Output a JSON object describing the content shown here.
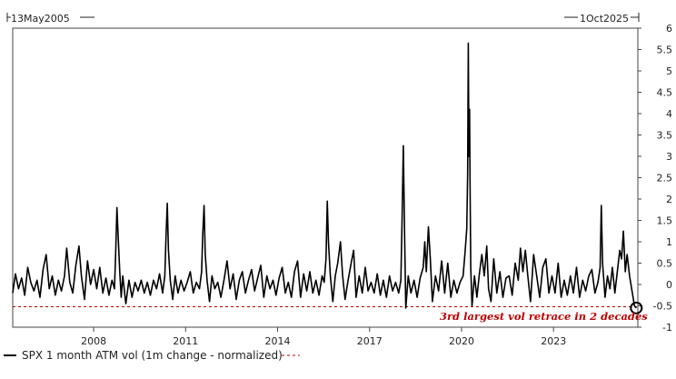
{
  "chart_data": {
    "type": "line",
    "title": "",
    "xlabel": "",
    "ylabel": "",
    "x_range_labels": {
      "start": "13May2005",
      "end": "1Oct2025"
    },
    "x_domain": [
      2005.36,
      2025.75
    ],
    "x_ticks": [
      {
        "value": 2008.0,
        "label": "2008"
      },
      {
        "value": 2011.0,
        "label": "2011"
      },
      {
        "value": 2014.0,
        "label": "2014"
      },
      {
        "value": 2017.0,
        "label": "2017"
      },
      {
        "value": 2020.0,
        "label": "2020"
      },
      {
        "value": 2023.0,
        "label": "2023"
      }
    ],
    "y_axis_side": "right",
    "ylim": [
      -1,
      6
    ],
    "y_ticks": [
      {
        "value": 6,
        "label": "6"
      },
      {
        "value": 5.5,
        "label": "5.5"
      },
      {
        "value": 5,
        "label": "5"
      },
      {
        "value": 4.5,
        "label": "4.5"
      },
      {
        "value": 4,
        "label": "4"
      },
      {
        "value": 3.5,
        "label": "3.5"
      },
      {
        "value": 3,
        "label": "3"
      },
      {
        "value": 2.5,
        "label": "2.5"
      },
      {
        "value": 2,
        "label": "2"
      },
      {
        "value": 1.5,
        "label": "1.5"
      },
      {
        "value": 1,
        "label": "1"
      },
      {
        "value": 0.5,
        "label": "0.5"
      },
      {
        "value": 0,
        "label": "0"
      },
      {
        "value": -0.5,
        "label": "-0.5"
      },
      {
        "value": -1,
        "label": "-1"
      }
    ],
    "grid": false,
    "series": [
      {
        "name": "SPX 1 month ATM vol (1m change - normalized)",
        "color": "#000000",
        "points": [
          [
            2005.36,
            -0.2
          ],
          [
            2005.45,
            0.25
          ],
          [
            2005.55,
            -0.1
          ],
          [
            2005.65,
            0.15
          ],
          [
            2005.75,
            -0.25
          ],
          [
            2005.85,
            0.4
          ],
          [
            2005.95,
            0.05
          ],
          [
            2006.05,
            -0.15
          ],
          [
            2006.15,
            0.1
          ],
          [
            2006.25,
            -0.3
          ],
          [
            2006.35,
            0.35
          ],
          [
            2006.45,
            0.7
          ],
          [
            2006.55,
            -0.1
          ],
          [
            2006.65,
            0.2
          ],
          [
            2006.75,
            -0.25
          ],
          [
            2006.85,
            0.1
          ],
          [
            2006.95,
            -0.15
          ],
          [
            2007.05,
            0.2
          ],
          [
            2007.12,
            0.85
          ],
          [
            2007.22,
            0.05
          ],
          [
            2007.32,
            -0.2
          ],
          [
            2007.42,
            0.45
          ],
          [
            2007.52,
            0.9
          ],
          [
            2007.6,
            0.2
          ],
          [
            2007.7,
            -0.35
          ],
          [
            2007.8,
            0.55
          ],
          [
            2007.9,
            0.0
          ],
          [
            2008.0,
            0.35
          ],
          [
            2008.1,
            -0.1
          ],
          [
            2008.2,
            0.4
          ],
          [
            2008.3,
            -0.2
          ],
          [
            2008.4,
            0.15
          ],
          [
            2008.5,
            -0.25
          ],
          [
            2008.6,
            0.1
          ],
          [
            2008.68,
            -0.1
          ],
          [
            2008.72,
            0.8
          ],
          [
            2008.76,
            1.8
          ],
          [
            2008.8,
            1.1
          ],
          [
            2008.85,
            0.3
          ],
          [
            2008.9,
            -0.3
          ],
          [
            2008.95,
            0.2
          ],
          [
            2009.05,
            -0.45
          ],
          [
            2009.15,
            0.1
          ],
          [
            2009.25,
            -0.3
          ],
          [
            2009.35,
            0.05
          ],
          [
            2009.45,
            -0.15
          ],
          [
            2009.55,
            0.1
          ],
          [
            2009.65,
            -0.2
          ],
          [
            2009.75,
            0.05
          ],
          [
            2009.85,
            -0.25
          ],
          [
            2009.95,
            0.1
          ],
          [
            2010.05,
            -0.1
          ],
          [
            2010.15,
            0.25
          ],
          [
            2010.25,
            -0.2
          ],
          [
            2010.32,
            0.2
          ],
          [
            2010.36,
            1.1
          ],
          [
            2010.4,
            1.9
          ],
          [
            2010.44,
            0.8
          ],
          [
            2010.5,
            0.1
          ],
          [
            2010.58,
            -0.35
          ],
          [
            2010.66,
            0.2
          ],
          [
            2010.75,
            -0.2
          ],
          [
            2010.85,
            0.1
          ],
          [
            2010.95,
            -0.15
          ],
          [
            2011.05,
            0.05
          ],
          [
            2011.15,
            0.3
          ],
          [
            2011.25,
            -0.2
          ],
          [
            2011.35,
            0.05
          ],
          [
            2011.45,
            -0.1
          ],
          [
            2011.52,
            0.3
          ],
          [
            2011.56,
            1.2
          ],
          [
            2011.6,
            1.85
          ],
          [
            2011.64,
            0.7
          ],
          [
            2011.7,
            0.1
          ],
          [
            2011.78,
            -0.4
          ],
          [
            2011.86,
            0.2
          ],
          [
            2011.95,
            -0.1
          ],
          [
            2012.05,
            0.05
          ],
          [
            2012.15,
            -0.3
          ],
          [
            2012.25,
            0.1
          ],
          [
            2012.35,
            0.55
          ],
          [
            2012.45,
            -0.1
          ],
          [
            2012.55,
            0.25
          ],
          [
            2012.65,
            -0.35
          ],
          [
            2012.75,
            0.1
          ],
          [
            2012.85,
            0.3
          ],
          [
            2012.95,
            -0.2
          ],
          [
            2013.05,
            0.1
          ],
          [
            2013.15,
            0.35
          ],
          [
            2013.25,
            -0.15
          ],
          [
            2013.35,
            0.15
          ],
          [
            2013.45,
            0.45
          ],
          [
            2013.55,
            -0.3
          ],
          [
            2013.65,
            0.2
          ],
          [
            2013.75,
            -0.1
          ],
          [
            2013.85,
            0.1
          ],
          [
            2013.95,
            -0.25
          ],
          [
            2014.05,
            0.15
          ],
          [
            2014.15,
            0.4
          ],
          [
            2014.25,
            -0.2
          ],
          [
            2014.35,
            0.05
          ],
          [
            2014.45,
            -0.3
          ],
          [
            2014.55,
            0.3
          ],
          [
            2014.65,
            0.55
          ],
          [
            2014.75,
            -0.3
          ],
          [
            2014.85,
            0.25
          ],
          [
            2014.95,
            -0.15
          ],
          [
            2015.05,
            0.3
          ],
          [
            2015.15,
            -0.2
          ],
          [
            2015.25,
            0.1
          ],
          [
            2015.35,
            -0.25
          ],
          [
            2015.45,
            0.2
          ],
          [
            2015.52,
            0.05
          ],
          [
            2015.58,
            0.6
          ],
          [
            2015.62,
            1.95
          ],
          [
            2015.66,
            1.0
          ],
          [
            2015.72,
            0.2
          ],
          [
            2015.8,
            -0.4
          ],
          [
            2015.88,
            0.2
          ],
          [
            2015.96,
            0.5
          ],
          [
            2016.05,
            1.0
          ],
          [
            2016.12,
            0.2
          ],
          [
            2016.2,
            -0.35
          ],
          [
            2016.3,
            0.1
          ],
          [
            2016.4,
            0.5
          ],
          [
            2016.48,
            0.8
          ],
          [
            2016.56,
            -0.3
          ],
          [
            2016.66,
            0.2
          ],
          [
            2016.76,
            -0.2
          ],
          [
            2016.86,
            0.4
          ],
          [
            2016.95,
            -0.15
          ],
          [
            2017.05,
            0.05
          ],
          [
            2017.15,
            -0.2
          ],
          [
            2017.25,
            0.25
          ],
          [
            2017.35,
            -0.25
          ],
          [
            2017.45,
            0.1
          ],
          [
            2017.55,
            -0.3
          ],
          [
            2017.65,
            0.2
          ],
          [
            2017.75,
            -0.15
          ],
          [
            2017.85,
            0.05
          ],
          [
            2017.95,
            -0.2
          ],
          [
            2018.02,
            0.1
          ],
          [
            2018.06,
            1.5
          ],
          [
            2018.1,
            3.25
          ],
          [
            2018.14,
            1.3
          ],
          [
            2018.18,
            -0.55
          ],
          [
            2018.26,
            0.2
          ],
          [
            2018.35,
            -0.2
          ],
          [
            2018.45,
            0.1
          ],
          [
            2018.55,
            -0.3
          ],
          [
            2018.65,
            0.15
          ],
          [
            2018.75,
            0.4
          ],
          [
            2018.8,
            1.0
          ],
          [
            2018.85,
            0.3
          ],
          [
            2018.92,
            1.35
          ],
          [
            2018.98,
            0.6
          ],
          [
            2019.05,
            -0.4
          ],
          [
            2019.15,
            0.2
          ],
          [
            2019.25,
            -0.15
          ],
          [
            2019.35,
            0.55
          ],
          [
            2019.45,
            -0.2
          ],
          [
            2019.55,
            0.5
          ],
          [
            2019.65,
            -0.3
          ],
          [
            2019.75,
            0.1
          ],
          [
            2019.85,
            -0.2
          ],
          [
            2019.95,
            0.05
          ],
          [
            2020.05,
            0.2
          ],
          [
            2020.12,
            0.8
          ],
          [
            2020.17,
            1.3
          ],
          [
            2020.2,
            2.6
          ],
          [
            2020.22,
            5.65
          ],
          [
            2020.24,
            3.0
          ],
          [
            2020.26,
            4.1
          ],
          [
            2020.28,
            2.2
          ],
          [
            2020.3,
            0.4
          ],
          [
            2020.34,
            -0.5
          ],
          [
            2020.42,
            0.2
          ],
          [
            2020.5,
            -0.3
          ],
          [
            2020.58,
            0.25
          ],
          [
            2020.66,
            0.7
          ],
          [
            2020.74,
            0.2
          ],
          [
            2020.82,
            0.9
          ],
          [
            2020.88,
            -0.1
          ],
          [
            2020.96,
            -0.4
          ],
          [
            2021.05,
            0.6
          ],
          [
            2021.15,
            -0.2
          ],
          [
            2021.25,
            0.3
          ],
          [
            2021.35,
            -0.3
          ],
          [
            2021.45,
            0.15
          ],
          [
            2021.55,
            0.2
          ],
          [
            2021.65,
            -0.25
          ],
          [
            2021.75,
            0.5
          ],
          [
            2021.85,
            0.1
          ],
          [
            2021.92,
            0.85
          ],
          [
            2022.0,
            0.3
          ],
          [
            2022.08,
            0.8
          ],
          [
            2022.16,
            0.2
          ],
          [
            2022.25,
            -0.4
          ],
          [
            2022.35,
            0.7
          ],
          [
            2022.45,
            0.2
          ],
          [
            2022.55,
            -0.3
          ],
          [
            2022.65,
            0.4
          ],
          [
            2022.75,
            0.6
          ],
          [
            2022.85,
            -0.2
          ],
          [
            2022.95,
            0.2
          ],
          [
            2023.05,
            -0.2
          ],
          [
            2023.15,
            0.5
          ],
          [
            2023.25,
            -0.3
          ],
          [
            2023.35,
            0.1
          ],
          [
            2023.45,
            -0.25
          ],
          [
            2023.55,
            0.2
          ],
          [
            2023.65,
            -0.2
          ],
          [
            2023.75,
            0.4
          ],
          [
            2023.85,
            -0.3
          ],
          [
            2023.95,
            0.1
          ],
          [
            2024.05,
            -0.15
          ],
          [
            2024.15,
            0.2
          ],
          [
            2024.25,
            0.35
          ],
          [
            2024.35,
            -0.2
          ],
          [
            2024.45,
            0.05
          ],
          [
            2024.52,
            0.4
          ],
          [
            2024.56,
            1.85
          ],
          [
            2024.6,
            0.5
          ],
          [
            2024.68,
            -0.3
          ],
          [
            2024.76,
            0.2
          ],
          [
            2024.84,
            -0.1
          ],
          [
            2024.92,
            0.4
          ],
          [
            2025.0,
            -0.2
          ],
          [
            2025.08,
            0.3
          ],
          [
            2025.16,
            0.8
          ],
          [
            2025.22,
            0.6
          ],
          [
            2025.28,
            1.25
          ],
          [
            2025.34,
            0.3
          ],
          [
            2025.4,
            0.7
          ],
          [
            2025.48,
            0.2
          ],
          [
            2025.56,
            -0.15
          ],
          [
            2025.64,
            -0.5
          ],
          [
            2025.7,
            -0.55
          ]
        ]
      },
      {
        "name": "",
        "color": "#c00000",
        "style": "dashed",
        "constant": -0.52
      }
    ],
    "legend": {
      "placement": "bottom-left"
    },
    "annotations": [
      {
        "text": "3rd largest vol retrace in 2 decades",
        "color": "#c00000"
      }
    ],
    "highlight": {
      "x": 2025.7,
      "y": -0.55,
      "marker": "circle"
    }
  }
}
